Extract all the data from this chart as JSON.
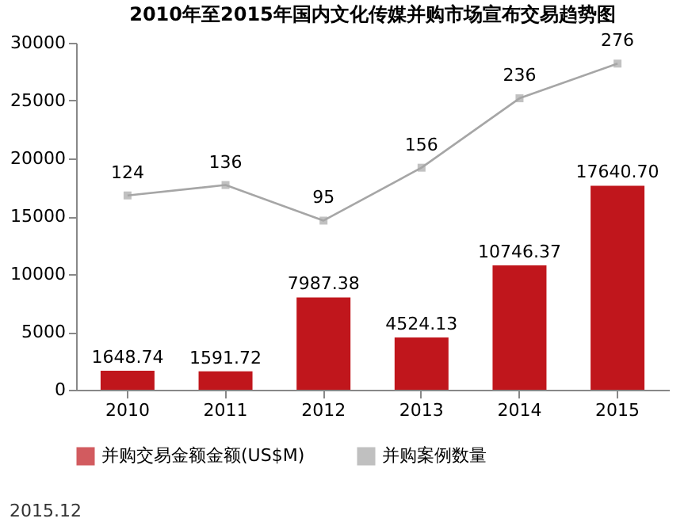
{
  "chart_data": {
    "type": "bar",
    "title": "2010年至2015年国内文化传媒并购市场宣布交易趋势图",
    "categories": [
      "2010",
      "2011",
      "2012",
      "2013",
      "2014",
      "2015"
    ],
    "series": [
      {
        "name": "并购交易金额金额(US$M)",
        "color": "#c0161c",
        "values": [
          1648.74,
          1591.72,
          7987.38,
          4524.13,
          10746.37,
          17640.7
        ],
        "value_labels": [
          "1648.74",
          "1591.72",
          "7987.38",
          "4524.13",
          "10746.37",
          "17640.70"
        ]
      },
      {
        "name": "并购案例数量",
        "type": "line",
        "axis": "y2",
        "color": "#a6a6a6",
        "values": [
          124,
          136,
          95,
          156,
          236,
          276
        ]
      }
    ],
    "ylim": [
      0,
      30000
    ],
    "yticks": [
      0,
      5000,
      10000,
      15000,
      20000,
      25000,
      30000
    ],
    "y2lim": [
      -100,
      300
    ],
    "data_labels": true,
    "grid": false,
    "legend": "bottom",
    "marker": "square",
    "line_style": "solid",
    "annotations": [
      "2015.12"
    ]
  }
}
